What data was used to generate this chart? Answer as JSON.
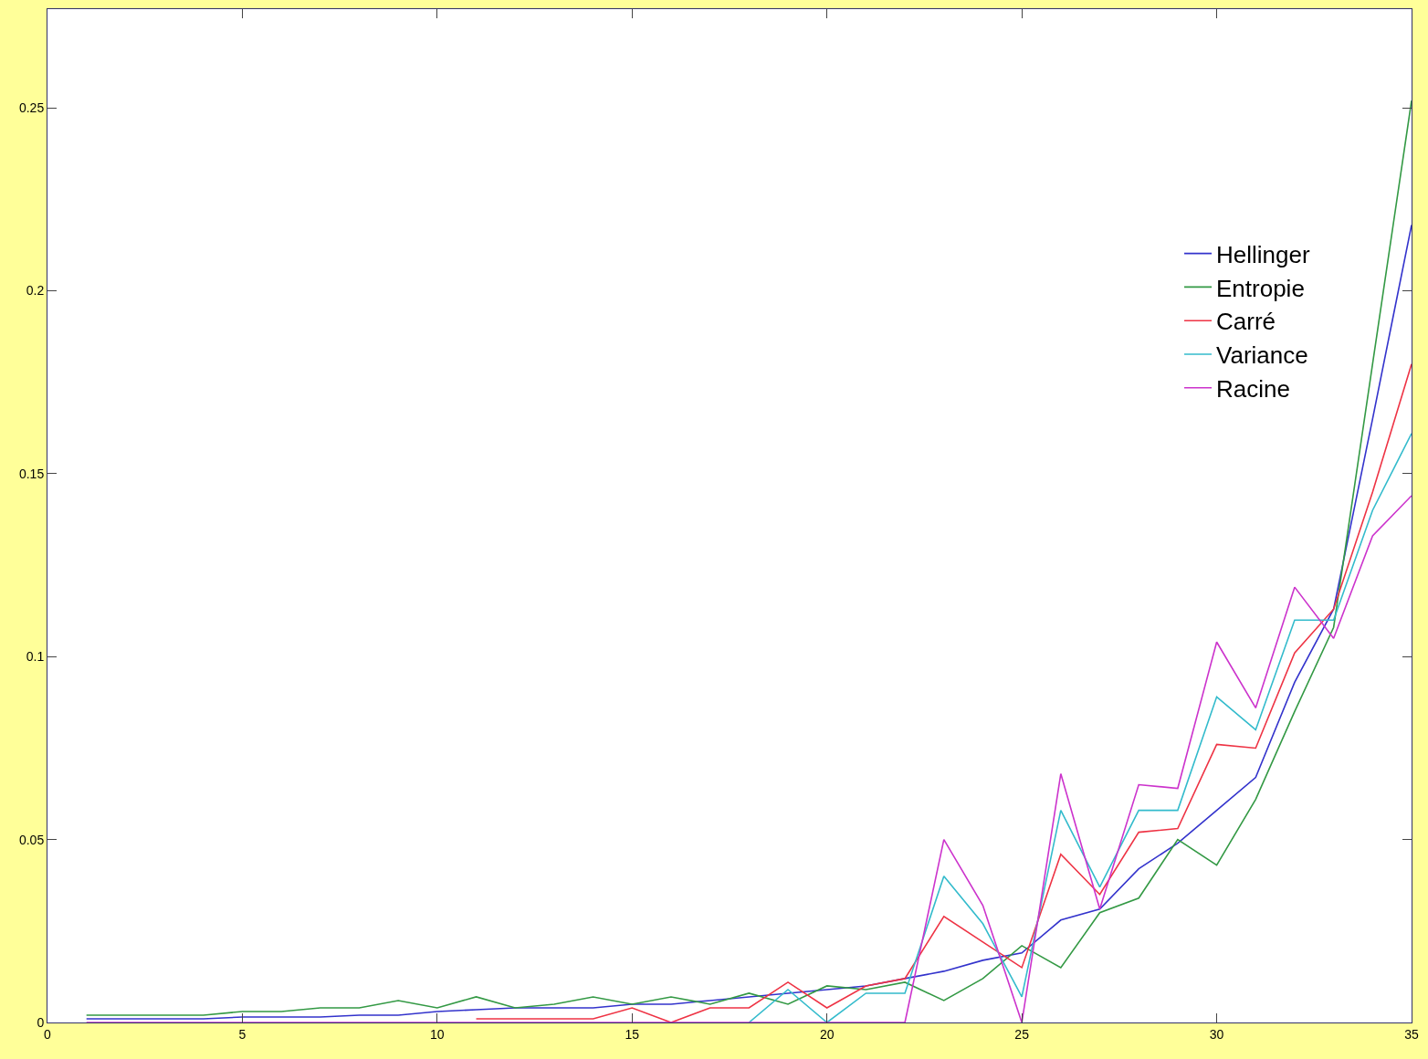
{
  "chart_data": {
    "type": "line",
    "x": [
      1,
      2,
      3,
      4,
      5,
      6,
      7,
      8,
      9,
      10,
      11,
      12,
      13,
      14,
      15,
      16,
      17,
      18,
      19,
      20,
      21,
      22,
      23,
      24,
      25,
      26,
      27,
      28,
      29,
      30,
      31,
      32,
      33,
      34,
      35
    ],
    "series": [
      {
        "name": "Hellinger",
        "color": "#3333cc",
        "values": [
          0.001,
          0.001,
          0.001,
          0.001,
          0.0015,
          0.0015,
          0.0015,
          0.002,
          0.002,
          0.003,
          0.0035,
          0.004,
          0.004,
          0.004,
          0.005,
          0.005,
          0.006,
          0.007,
          0.008,
          0.009,
          0.01,
          0.012,
          0.014,
          0.017,
          0.019,
          0.028,
          0.031,
          0.042,
          0.049,
          0.058,
          0.067,
          0.093,
          0.113,
          0.165,
          0.218
        ]
      },
      {
        "name": "Entropie",
        "color": "#339944",
        "values": [
          0.002,
          0.002,
          0.002,
          0.002,
          0.003,
          0.003,
          0.004,
          0.004,
          0.006,
          0.004,
          0.007,
          0.004,
          0.005,
          0.007,
          0.005,
          0.007,
          0.005,
          0.008,
          0.005,
          0.01,
          0.009,
          0.011,
          0.006,
          0.012,
          0.021,
          0.015,
          0.03,
          0.034,
          0.05,
          0.043,
          0.061,
          0.085,
          0.108,
          0.18,
          0.252
        ]
      },
      {
        "name": "Carré",
        "color": "#ee3344",
        "values": [
          null,
          null,
          null,
          null,
          null,
          null,
          null,
          null,
          null,
          null,
          0.001,
          0.001,
          0.001,
          0.001,
          0.004,
          0,
          0.004,
          0.004,
          0.011,
          0.004,
          0.01,
          0.012,
          0.029,
          0.022,
          0.015,
          0.046,
          0.035,
          0.052,
          0.053,
          0.076,
          0.075,
          0.101,
          0.113,
          0.145,
          0.18
        ]
      },
      {
        "name": "Variance",
        "color": "#33bbcc",
        "values": [
          null,
          null,
          null,
          null,
          null,
          null,
          null,
          null,
          null,
          null,
          null,
          null,
          null,
          null,
          null,
          null,
          null,
          0,
          0.009,
          0,
          0.008,
          0.008,
          0.04,
          0.027,
          0.007,
          0.058,
          0.037,
          0.058,
          0.058,
          0.089,
          0.08,
          0.11,
          0.11,
          0.14,
          0.161
        ]
      },
      {
        "name": "Racine",
        "color": "#cc33cc",
        "values": [
          0,
          0,
          0,
          0,
          0,
          0,
          0,
          0,
          0,
          0,
          0,
          0,
          0,
          0,
          0,
          0,
          0,
          0,
          0,
          0,
          0,
          0,
          0.05,
          0.032,
          0,
          0.068,
          0.031,
          0.065,
          0.064,
          0.104,
          0.086,
          0.119,
          0.105,
          0.133,
          0.144
        ]
      }
    ],
    "xlim": [
      0,
      35
    ],
    "xticks": [
      0,
      5,
      10,
      15,
      20,
      25,
      30,
      35
    ],
    "ylim": [
      0,
      0.277
    ],
    "yticks": [
      0,
      0.05,
      0.1,
      0.15,
      0.2,
      0.25
    ],
    "grid": false,
    "legend": "top right",
    "marker": "none",
    "line_style": "solid"
  }
}
